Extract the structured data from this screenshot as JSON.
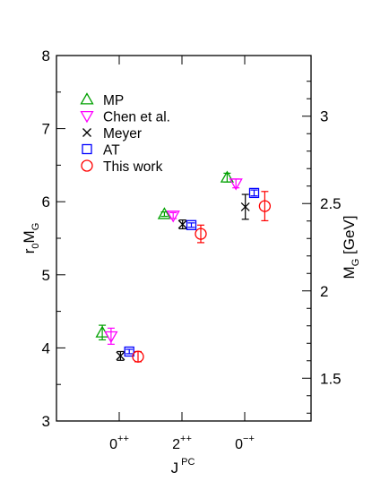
{
  "chart_data": {
    "type": "scatter",
    "categories": [
      {
        "base": "0",
        "sup": "++"
      },
      {
        "base": "2",
        "sup": "++"
      },
      {
        "base": "0",
        "sup": "−+"
      }
    ],
    "xlabel": {
      "base": "J",
      "sup": "PC"
    },
    "ylabel": {
      "base": "r",
      "sub1": "0",
      "mid": "M",
      "sub2": "G"
    },
    "y2label": {
      "base": "M",
      "sub": "G",
      "rest": " [GeV]"
    },
    "ylim": [
      3,
      8
    ],
    "yticks": [
      "3",
      "4",
      "5",
      "6",
      "7",
      "8"
    ],
    "y2_gev_to_r0M": 2.39,
    "y2ticks": [
      "1.5",
      "2",
      "2.5",
      "3"
    ],
    "legend_position": "top-left",
    "series": [
      {
        "name": "MP",
        "marker": "triangle-up",
        "color": "#00a000",
        "points": [
          {
            "x": -0.27,
            "y": 4.21,
            "err": 0.1
          },
          {
            "x": 0.72,
            "y": 5.83,
            "err": 0.03
          },
          {
            "x": 1.72,
            "y": 6.33,
            "err": 0.06
          }
        ]
      },
      {
        "name": "Chen et al.",
        "marker": "triangle-down",
        "color": "#ff00ff",
        "points": [
          {
            "x": -0.13,
            "y": 4.16,
            "err": 0.11
          },
          {
            "x": 0.86,
            "y": 5.81,
            "err": 0.04
          },
          {
            "x": 1.86,
            "y": 6.25,
            "err": 0.06
          }
        ]
      },
      {
        "name": "Meyer",
        "marker": "cross",
        "color": "#000000",
        "points": [
          {
            "x": 0.02,
            "y": 3.89,
            "err": 0.06
          },
          {
            "x": 1.01,
            "y": 5.69,
            "err": 0.06
          },
          {
            "x": 2.01,
            "y": 5.93,
            "err": 0.17
          }
        ]
      },
      {
        "name": "AT",
        "marker": "square",
        "color": "#0000ff",
        "points": [
          {
            "x": 0.16,
            "y": 3.95,
            "err": 0.03
          },
          {
            "x": 1.15,
            "y": 5.68,
            "err": 0.03
          },
          {
            "x": 2.15,
            "y": 6.12,
            "err": 0.04
          }
        ]
      },
      {
        "name": "This work",
        "marker": "circle",
        "color": "#ff0000",
        "points": [
          {
            "x": 0.3,
            "y": 3.88,
            "err": 0.07
          },
          {
            "x": 1.3,
            "y": 5.56,
            "err": 0.12
          },
          {
            "x": 2.32,
            "y": 5.94,
            "err": 0.2
          }
        ]
      }
    ]
  }
}
